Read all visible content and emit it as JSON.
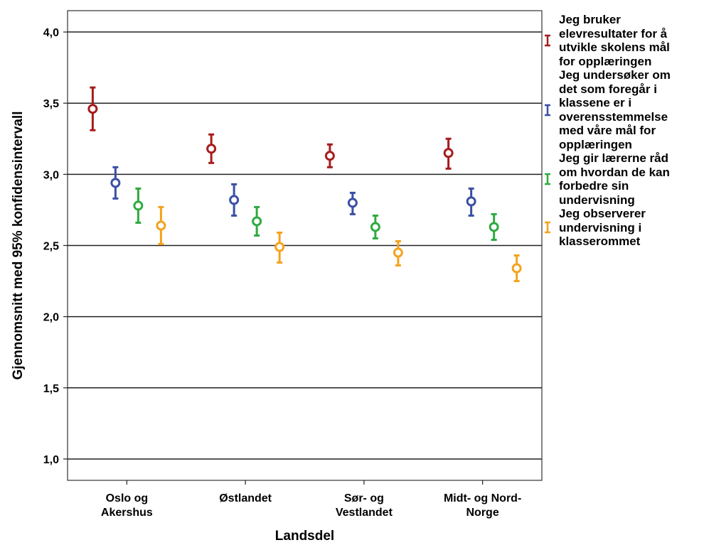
{
  "chart_data": {
    "type": "scatter",
    "subtype": "error-bar",
    "title": "",
    "xlabel": "Landsdel",
    "ylabel": "Gjennomsnitt med 95% konfidensintervall",
    "ylim": [
      0.85,
      4.15
    ],
    "y_ticks": [
      "1,0",
      "1,5",
      "2,0",
      "2,5",
      "3,0",
      "3,5",
      "4,0"
    ],
    "y_tick_values": [
      1.0,
      1.5,
      2.0,
      2.5,
      3.0,
      3.5,
      4.0
    ],
    "categories": [
      [
        "Oslo og",
        "Akershus"
      ],
      [
        "Østlandet"
      ],
      [
        "Sør- og",
        "Vestlandet"
      ],
      [
        "Midt- og Nord-",
        "Norge"
      ]
    ],
    "grid": "horizontal",
    "legend_position": "right",
    "series": [
      {
        "name": "Jeg bruker elevresultater for å utvikle skolens mål for opplæringen",
        "legend_lines": [
          "Jeg bruker",
          "elevresultater for å",
          "utvikle skolens mål",
          "for opplæringen"
        ],
        "color": "#a51c1c",
        "mean": [
          3.46,
          3.18,
          3.13,
          3.15
        ],
        "low": [
          3.31,
          3.08,
          3.05,
          3.04
        ],
        "high": [
          3.61,
          3.28,
          3.21,
          3.25
        ]
      },
      {
        "name": "Jeg undersøker om det som foregår i klassene er i overensstemmelse med våre mål for opplæringen",
        "legend_lines": [
          "Jeg undersøker om",
          "det som foregår i",
          "klassene er i",
          "overensstemmelse",
          "med våre mål for",
          "opplæringen"
        ],
        "color": "#3a4fa5",
        "mean": [
          2.94,
          2.82,
          2.8,
          2.81
        ],
        "low": [
          2.83,
          2.71,
          2.72,
          2.71
        ],
        "high": [
          3.05,
          2.93,
          2.87,
          2.9
        ]
      },
      {
        "name": "Jeg gir lærerne råd om hvordan de kan forbedre sin undervisning",
        "legend_lines": [
          "Jeg gir lærerne råd",
          "om hvordan de kan",
          "forbedre sin",
          "undervisning"
        ],
        "color": "#2eab3f",
        "mean": [
          2.78,
          2.67,
          2.63,
          2.63
        ],
        "low": [
          2.66,
          2.57,
          2.55,
          2.54
        ],
        "high": [
          2.9,
          2.77,
          2.71,
          2.72
        ]
      },
      {
        "name": "Jeg observerer undervisning i klasserommet",
        "legend_lines": [
          "Jeg observerer",
          "undervisning i",
          "klasserommet"
        ],
        "color": "#f5a21c",
        "mean": [
          2.64,
          2.49,
          2.45,
          2.34
        ],
        "low": [
          2.51,
          2.38,
          2.36,
          2.25
        ],
        "high": [
          2.77,
          2.59,
          2.53,
          2.43
        ]
      }
    ]
  }
}
